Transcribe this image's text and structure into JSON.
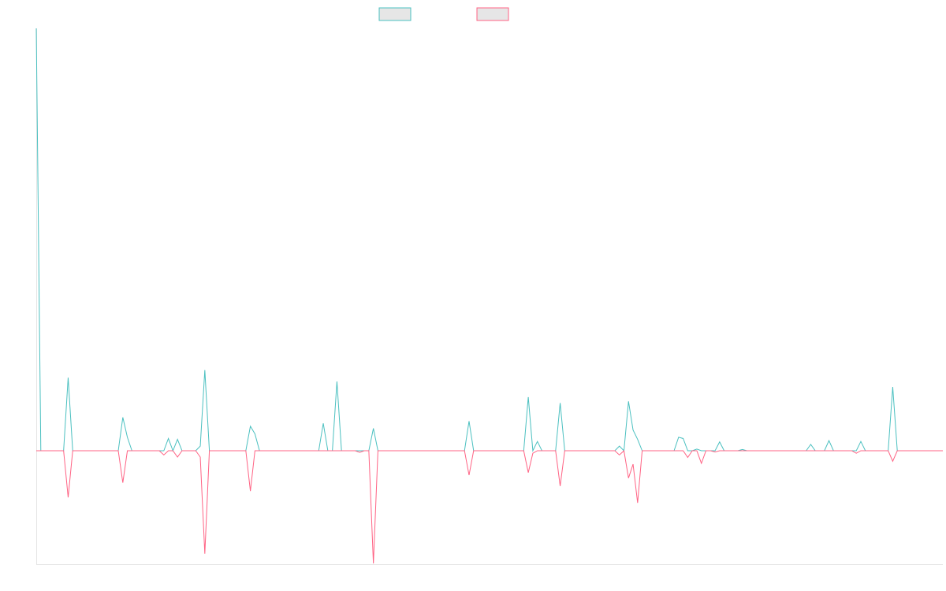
{
  "chart_data": {
    "type": "line",
    "title": "",
    "xlabel": "",
    "ylabel": "",
    "legend_position": "top-center",
    "grid": false,
    "x_count": 200,
    "y_positive_max": 100,
    "y_negative_max": 27,
    "series": [
      {
        "color": "#4bc0c0",
        "fill": "#e6e6e6",
        "direction": "up",
        "points": [
          [
            0,
            100
          ],
          [
            7,
            17.3
          ],
          [
            19,
            7.9
          ],
          [
            20,
            3.2
          ],
          [
            29,
            2.9
          ],
          [
            31,
            2.7
          ],
          [
            36,
            1.1
          ],
          [
            37,
            19.1
          ],
          [
            47,
            5.8
          ],
          [
            48,
            4.0
          ],
          [
            63,
            6.5
          ],
          [
            66,
            16.4
          ],
          [
            74,
            5.3
          ],
          [
            95,
            7.0
          ],
          [
            108,
            12.7
          ],
          [
            110,
            2.2
          ],
          [
            115,
            11.3
          ],
          [
            128,
            1.1
          ],
          [
            130,
            11.7
          ],
          [
            131,
            4.9
          ],
          [
            132,
            2.7
          ],
          [
            141,
            3.2
          ],
          [
            142,
            2.9
          ],
          [
            145,
            0.4
          ],
          [
            150,
            2.1
          ],
          [
            155,
            0.3
          ],
          [
            170,
            1.5
          ],
          [
            174,
            2.4
          ],
          [
            181,
            2.2
          ],
          [
            188,
            15.1
          ]
        ]
      },
      {
        "color": "#ff6384",
        "fill": "#e6e6e6",
        "direction": "down",
        "points": [
          [
            7,
            11.1
          ],
          [
            19,
            7.6
          ],
          [
            28,
            1.0
          ],
          [
            31,
            1.5
          ],
          [
            36,
            1.5
          ],
          [
            37,
            24.5
          ],
          [
            47,
            9.6
          ],
          [
            71,
            0.4
          ],
          [
            74,
            26.8
          ],
          [
            95,
            5.8
          ],
          [
            108,
            5.2
          ],
          [
            109,
            0.6
          ],
          [
            115,
            8.4
          ],
          [
            128,
            1.0
          ],
          [
            130,
            6.5
          ],
          [
            131,
            3.2
          ],
          [
            132,
            12.4
          ],
          [
            143,
            1.6
          ],
          [
            146,
            3.0
          ],
          [
            149,
            0.3
          ],
          [
            180,
            0.6
          ],
          [
            188,
            2.5
          ]
        ]
      }
    ]
  }
}
